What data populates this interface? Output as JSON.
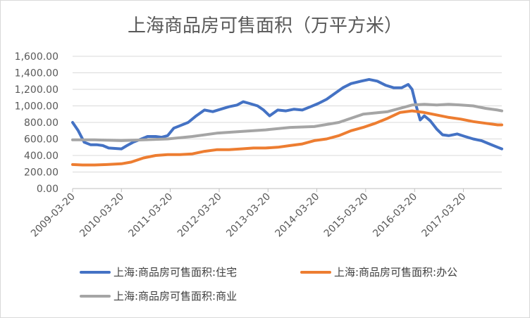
{
  "chart_data": {
    "type": "line",
    "title": "上海商品房可售面积（万平方米）",
    "xlabel": "",
    "ylabel": "",
    "ylim": [
      0,
      1600
    ],
    "yticks": [
      "0.00",
      "200.00",
      "400.00",
      "600.00",
      "800.00",
      "1,000.00",
      "1,200.00",
      "1,400.00",
      "1,600.00"
    ],
    "xticks": [
      "2009-03-20",
      "2010-03-20",
      "2011-03-20",
      "2012-03-20",
      "2013-03-20",
      "2014-03-20",
      "2015-03-20",
      "2016-03-20",
      "2017-03-20"
    ],
    "xlim": [
      "2009-03-20",
      "2018-01-01"
    ],
    "grid": "horizontal",
    "legend_position": "bottom",
    "colors": {
      "住宅": "#4472c4",
      "办公": "#ed7d31",
      "商业": "#a5a5a5"
    },
    "series": [
      {
        "name": "上海:商品房可售面积:住宅",
        "points": [
          [
            "2009-03-20",
            800
          ],
          [
            "2009-05-01",
            700
          ],
          [
            "2009-06-15",
            560
          ],
          [
            "2009-08-01",
            530
          ],
          [
            "2009-09-15",
            530
          ],
          [
            "2009-11-01",
            520
          ],
          [
            "2009-12-15",
            490
          ],
          [
            "2010-02-01",
            485
          ],
          [
            "2010-03-20",
            480
          ],
          [
            "2010-05-01",
            520
          ],
          [
            "2010-06-15",
            560
          ],
          [
            "2010-08-01",
            590
          ],
          [
            "2010-10-01",
            630
          ],
          [
            "2010-12-01",
            630
          ],
          [
            "2011-01-15",
            620
          ],
          [
            "2011-03-01",
            640
          ],
          [
            "2011-04-15",
            730
          ],
          [
            "2011-06-01",
            760
          ],
          [
            "2011-08-01",
            800
          ],
          [
            "2011-10-01",
            880
          ],
          [
            "2011-12-01",
            950
          ],
          [
            "2012-02-01",
            930
          ],
          [
            "2012-04-01",
            960
          ],
          [
            "2012-06-01",
            990
          ],
          [
            "2012-08-01",
            1010
          ],
          [
            "2012-09-15",
            1050
          ],
          [
            "2012-11-01",
            1030
          ],
          [
            "2013-01-01",
            1000
          ],
          [
            "2013-02-15",
            950
          ],
          [
            "2013-04-01",
            880
          ],
          [
            "2013-06-01",
            950
          ],
          [
            "2013-08-01",
            940
          ],
          [
            "2013-10-01",
            960
          ],
          [
            "2013-12-01",
            950
          ],
          [
            "2014-02-01",
            990
          ],
          [
            "2014-04-01",
            1030
          ],
          [
            "2014-06-01",
            1080
          ],
          [
            "2014-08-01",
            1150
          ],
          [
            "2014-10-01",
            1220
          ],
          [
            "2014-12-01",
            1270
          ],
          [
            "2015-02-15",
            1300
          ],
          [
            "2015-04-15",
            1320
          ],
          [
            "2015-06-15",
            1300
          ],
          [
            "2015-08-15",
            1250
          ],
          [
            "2015-10-15",
            1220
          ],
          [
            "2015-12-15",
            1220
          ],
          [
            "2016-02-01",
            1260
          ],
          [
            "2016-03-01",
            1200
          ],
          [
            "2016-04-01",
            1000
          ],
          [
            "2016-05-01",
            830
          ],
          [
            "2016-06-01",
            880
          ],
          [
            "2016-07-15",
            820
          ],
          [
            "2016-09-01",
            720
          ],
          [
            "2016-10-15",
            650
          ],
          [
            "2016-12-01",
            640
          ],
          [
            "2017-02-01",
            660
          ],
          [
            "2017-04-01",
            630
          ],
          [
            "2017-06-01",
            600
          ],
          [
            "2017-08-01",
            580
          ],
          [
            "2017-10-01",
            540
          ],
          [
            "2017-12-01",
            500
          ],
          [
            "2018-01-01",
            480
          ]
        ]
      },
      {
        "name": "上海:商品房可售面积:办公",
        "points": [
          [
            "2009-03-20",
            290
          ],
          [
            "2009-06-01",
            285
          ],
          [
            "2009-09-01",
            285
          ],
          [
            "2009-12-01",
            290
          ],
          [
            "2010-03-20",
            300
          ],
          [
            "2010-06-01",
            320
          ],
          [
            "2010-09-01",
            370
          ],
          [
            "2010-12-01",
            400
          ],
          [
            "2011-03-01",
            410
          ],
          [
            "2011-06-01",
            410
          ],
          [
            "2011-09-01",
            420
          ],
          [
            "2011-12-01",
            450
          ],
          [
            "2012-03-01",
            470
          ],
          [
            "2012-06-01",
            470
          ],
          [
            "2012-09-01",
            480
          ],
          [
            "2012-12-01",
            490
          ],
          [
            "2013-03-01",
            490
          ],
          [
            "2013-06-01",
            500
          ],
          [
            "2013-09-01",
            520
          ],
          [
            "2013-12-01",
            540
          ],
          [
            "2014-03-01",
            580
          ],
          [
            "2014-06-01",
            600
          ],
          [
            "2014-09-01",
            640
          ],
          [
            "2014-12-01",
            700
          ],
          [
            "2015-03-01",
            740
          ],
          [
            "2015-06-01",
            790
          ],
          [
            "2015-09-01",
            850
          ],
          [
            "2015-12-01",
            920
          ],
          [
            "2016-03-01",
            940
          ],
          [
            "2016-06-01",
            920
          ],
          [
            "2016-09-01",
            890
          ],
          [
            "2016-12-01",
            860
          ],
          [
            "2017-03-01",
            840
          ],
          [
            "2017-06-01",
            810
          ],
          [
            "2017-09-01",
            790
          ],
          [
            "2017-12-01",
            770
          ],
          [
            "2018-01-01",
            770
          ]
        ]
      },
      {
        "name": "上海:商品房可售面积:商业",
        "points": [
          [
            "2009-03-20",
            590
          ],
          [
            "2009-09-01",
            590
          ],
          [
            "2010-03-20",
            580
          ],
          [
            "2010-09-01",
            590
          ],
          [
            "2011-03-01",
            600
          ],
          [
            "2011-09-01",
            630
          ],
          [
            "2012-03-01",
            670
          ],
          [
            "2012-09-01",
            690
          ],
          [
            "2013-03-01",
            710
          ],
          [
            "2013-09-01",
            740
          ],
          [
            "2014-03-01",
            750
          ],
          [
            "2014-09-01",
            800
          ],
          [
            "2015-03-01",
            900
          ],
          [
            "2015-09-01",
            930
          ],
          [
            "2016-03-01",
            1010
          ],
          [
            "2016-06-01",
            1020
          ],
          [
            "2016-09-01",
            1010
          ],
          [
            "2016-12-01",
            1020
          ],
          [
            "2017-03-01",
            1010
          ],
          [
            "2017-06-01",
            1000
          ],
          [
            "2017-09-01",
            970
          ],
          [
            "2017-12-01",
            950
          ],
          [
            "2018-01-01",
            940
          ]
        ]
      }
    ]
  }
}
